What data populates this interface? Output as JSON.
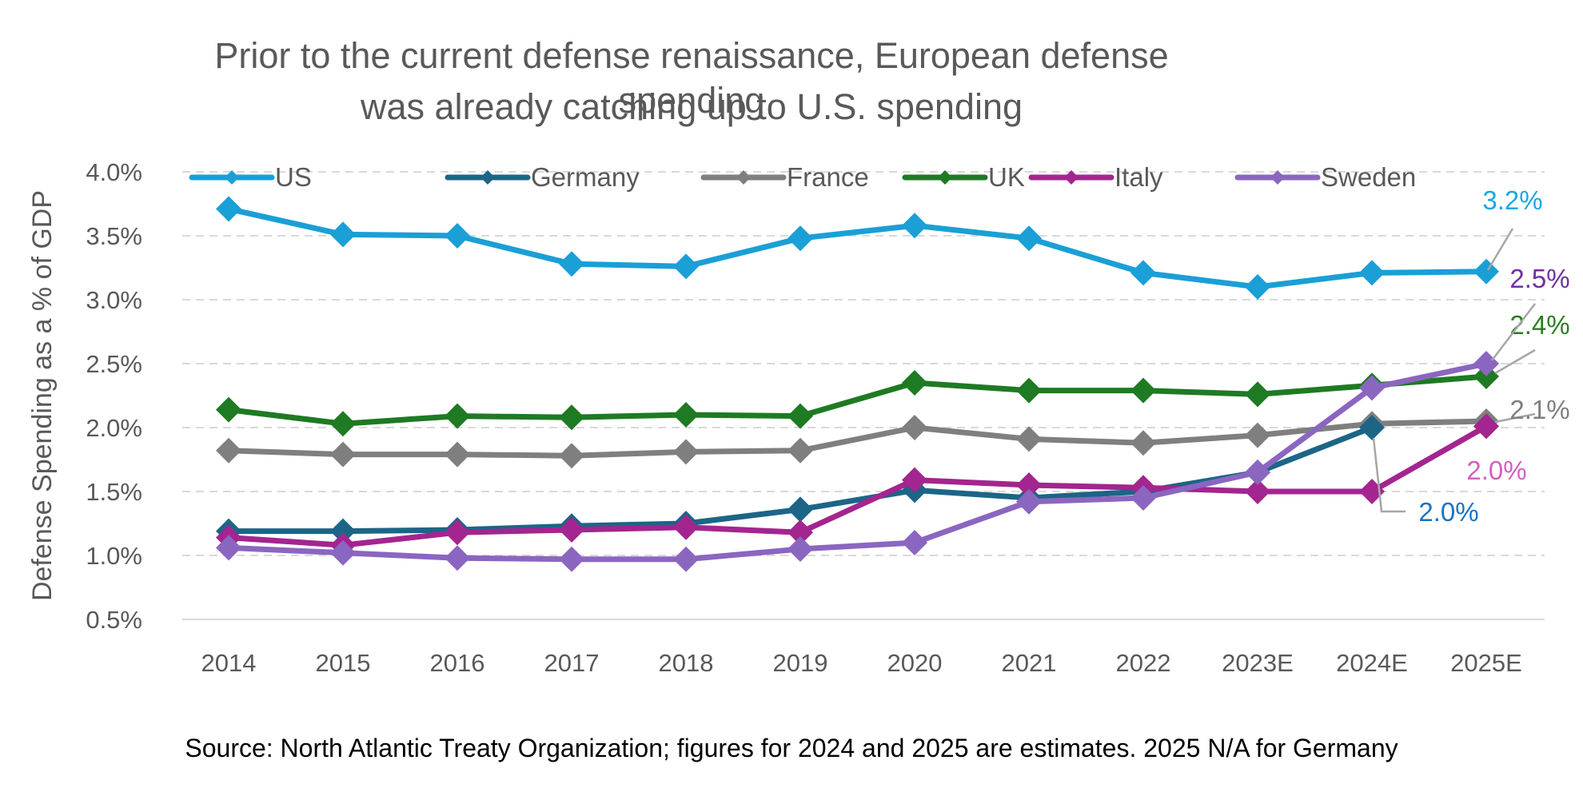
{
  "chart_data": {
    "type": "line",
    "title_line1": "Prior to the current defense renaissance, European defense spending",
    "title_line2": "was already catching up to U.S. spending",
    "ylabel": "Defense Spending as a % of GDP",
    "xlabel": "",
    "categories": [
      "2014",
      "2015",
      "2016",
      "2017",
      "2018",
      "2019",
      "2020",
      "2021",
      "2022",
      "2023E",
      "2024E",
      "2025E"
    ],
    "ylim": [
      0.5,
      4.0
    ],
    "yticks": [
      0.5,
      1.0,
      1.5,
      2.0,
      2.5,
      3.0,
      3.5,
      4.0
    ],
    "ytick_labels": [
      "0.5%",
      "1.0%",
      "1.5%",
      "2.0%",
      "2.5%",
      "3.0%",
      "3.5%",
      "4.0%"
    ],
    "grid": "horizontal-dashed",
    "legend_position": "top",
    "series": [
      {
        "name": "US",
        "color": "#1a9fd6",
        "values": [
          3.71,
          3.51,
          3.5,
          3.28,
          3.26,
          3.48,
          3.58,
          3.48,
          3.21,
          3.1,
          3.21,
          3.22
        ],
        "end_label": "3.2%"
      },
      {
        "name": "Germany",
        "color": "#1c6587",
        "values": [
          1.19,
          1.19,
          1.2,
          1.23,
          1.25,
          1.36,
          1.51,
          1.45,
          1.5,
          1.65,
          2.0,
          null
        ],
        "end_label": "2.0%"
      },
      {
        "name": "France",
        "color": "#7f7f7f",
        "values": [
          1.82,
          1.79,
          1.79,
          1.78,
          1.81,
          1.82,
          2.0,
          1.91,
          1.88,
          1.94,
          2.03,
          2.05
        ],
        "end_label": "2.1%"
      },
      {
        "name": "UK",
        "color": "#1e7a23",
        "values": [
          2.14,
          2.03,
          2.09,
          2.08,
          2.1,
          2.09,
          2.35,
          2.29,
          2.29,
          2.26,
          2.33,
          2.4
        ],
        "end_label": "2.4%"
      },
      {
        "name": "Italy",
        "color": "#a3258f",
        "values": [
          1.14,
          1.08,
          1.18,
          1.2,
          1.22,
          1.18,
          1.59,
          1.55,
          1.53,
          1.5,
          1.5,
          2.01
        ],
        "end_label": "2.0%"
      },
      {
        "name": "Sweden",
        "color": "#8b66c0",
        "values": [
          1.06,
          1.02,
          0.98,
          0.97,
          0.97,
          1.05,
          1.1,
          1.42,
          1.45,
          1.65,
          2.31,
          2.5
        ],
        "end_label": "2.5%"
      }
    ],
    "source": "Source: North Atlantic Treaty Organization; figures for 2024 and 2025 are estimates. 2025 N/A for Germany"
  }
}
